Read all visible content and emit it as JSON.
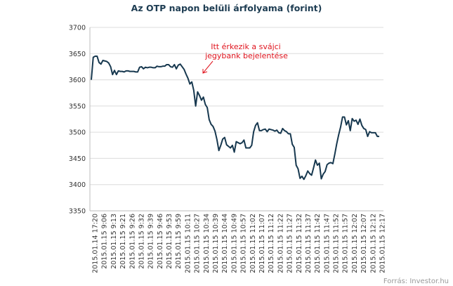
{
  "chart_data": {
    "type": "line",
    "title": "Az OTP napon belüli árfolyama (forint)",
    "source": "Forrás: Investor.hu",
    "ylim": [
      3350,
      3700
    ],
    "yticks": [
      "3700",
      "3650",
      "3600",
      "3550",
      "3500",
      "3450",
      "3400",
      "3350"
    ],
    "grid": true,
    "x_tick_labels": [
      "2015.01.14 17:20",
      "2015.01.15 9:06",
      "2015.01.15 9:13",
      "2015.01.15 9:21",
      "2015.01.15 9:26",
      "2015.01.15 9:32",
      "2015.01.15 9:39",
      "2015.01.15 9:46",
      "2015.01.15 9:53",
      "2015.01.15 9:59",
      "2015.01.15 10:11",
      "2015.01.15 10:27",
      "2015.01.15 10:34",
      "2015.01.15 10:39",
      "2015.01.15 10:44",
      "2015.01.15 10:49",
      "2015.01.15 10:57",
      "2015.01.15 11:02",
      "2015.01.15 11:07",
      "2015.01.15 11:12",
      "2015.01.15 11:22",
      "2015.01.15 11:27",
      "2015.01.15 11:32",
      "2015.01.15 11:37",
      "2015.01.15 11:42",
      "2015.01.15 11:47",
      "2015.01.15 11:52",
      "2015.01.15 11:57",
      "2015.01.15 12:02",
      "2015.01.15 12:07",
      "2015.01.15 12:12",
      "2015.01.15 12:17"
    ],
    "series": [
      {
        "color": "#17384f",
        "values": [
          3600,
          3643,
          3645,
          3645,
          3633,
          3630,
          3637,
          3636,
          3635,
          3632,
          3625,
          3610,
          3618,
          3610,
          3617,
          3616,
          3616,
          3615,
          3617,
          3617,
          3616,
          3616,
          3616,
          3615,
          3615,
          3624,
          3625,
          3621,
          3624,
          3623,
          3624,
          3624,
          3623,
          3623,
          3626,
          3625,
          3625,
          3626,
          3626,
          3629,
          3629,
          3625,
          3624,
          3629,
          3621,
          3628,
          3630,
          3625,
          3620,
          3611,
          3603,
          3592,
          3596,
          3580,
          3550,
          3577,
          3570,
          3561,
          3567,
          3553,
          3547,
          3524,
          3515,
          3511,
          3502,
          3486,
          3465,
          3475,
          3487,
          3490,
          3476,
          3473,
          3470,
          3475,
          3462,
          3482,
          3480,
          3478,
          3480,
          3485,
          3470,
          3470,
          3470,
          3475,
          3501,
          3513,
          3518,
          3503,
          3503,
          3505,
          3506,
          3501,
          3506,
          3505,
          3504,
          3502,
          3504,
          3499,
          3498,
          3507,
          3503,
          3501,
          3497,
          3497,
          3477,
          3471,
          3437,
          3430,
          3412,
          3416,
          3410,
          3417,
          3426,
          3421,
          3418,
          3432,
          3447,
          3437,
          3441,
          3411,
          3420,
          3425,
          3438,
          3441,
          3442,
          3440,
          3458,
          3478,
          3495,
          3510,
          3529,
          3529,
          3514,
          3522,
          3503,
          3526,
          3521,
          3523,
          3515,
          3525,
          3513,
          3507,
          3505,
          3492,
          3501,
          3499,
          3499,
          3499,
          3492,
          3492
        ]
      }
    ],
    "annotation": {
      "lines": [
        "Itt érkezik a svájci",
        "jegybank bejelentése"
      ],
      "color": "#e0141e"
    }
  }
}
